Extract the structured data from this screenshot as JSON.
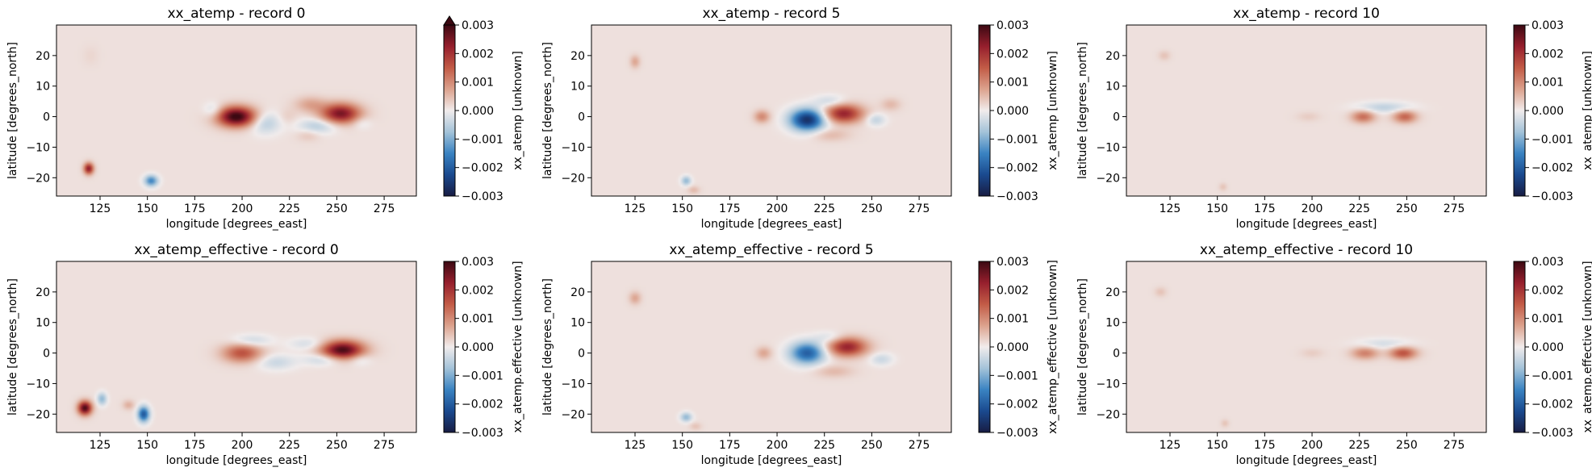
{
  "figure": {
    "panels": [
      {
        "id": "atemp-rec0",
        "title": "xx_atemp - record 0",
        "xlabel": "longitude [degrees_east]",
        "ylabel": "latitude [degrees_north]",
        "colorbar_label": "xx_atemp [unknown]",
        "colorbar_extend_max": true,
        "blobs": [
          {
            "lon": 197,
            "lat": 0,
            "w": 10,
            "h": 3.2,
            "v": 0.003
          },
          {
            "lon": 212,
            "lat": -2,
            "w": 8,
            "h": 3.5,
            "v": -0.0007
          },
          {
            "lon": 185,
            "lat": 2,
            "w": 5,
            "h": 2.5,
            "v": -0.0005
          },
          {
            "lon": 224,
            "lat": 0,
            "w": 5,
            "h": 2.5,
            "v": 0.0002
          },
          {
            "lon": 236,
            "lat": 4,
            "w": 8,
            "h": 2.5,
            "v": 0.0006
          },
          {
            "lon": 252,
            "lat": 1,
            "w": 10,
            "h": 3.2,
            "v": 0.0024
          },
          {
            "lon": 240,
            "lat": -3,
            "w": 10,
            "h": 2.5,
            "v": -0.0007
          },
          {
            "lon": 263,
            "lat": -2,
            "w": 5,
            "h": 2,
            "v": -0.0003
          },
          {
            "lon": 235,
            "lat": -6,
            "w": 6,
            "h": 2,
            "v": 0.0003
          },
          {
            "lon": 119,
            "lat": -17,
            "w": 2.5,
            "h": 1.8,
            "v": 0.0022
          },
          {
            "lon": 152,
            "lat": -21,
            "w": 3.5,
            "h": 1.8,
            "v": -0.0016
          },
          {
            "lon": 120,
            "lat": 20,
            "w": 4,
            "h": 3,
            "v": 0.0001
          }
        ]
      },
      {
        "id": "atemp-rec5",
        "title": "xx_atemp - record 5",
        "xlabel": "longitude [degrees_east]",
        "ylabel": "latitude [degrees_north]",
        "colorbar_label": "xx_atemp [unknown]",
        "colorbar_extend_max": false,
        "blobs": [
          {
            "lon": 216,
            "lat": -1,
            "w": 9,
            "h": 3.5,
            "v": -0.0028
          },
          {
            "lon": 235,
            "lat": 1,
            "w": 10,
            "h": 3,
            "v": 0.0021
          },
          {
            "lon": 192,
            "lat": 0,
            "w": 4,
            "h": 2,
            "v": 0.0009
          },
          {
            "lon": 228,
            "lat": 5,
            "w": 8,
            "h": 2,
            "v": -0.0005
          },
          {
            "lon": 252,
            "lat": -1,
            "w": 5,
            "h": 2,
            "v": -0.0006
          },
          {
            "lon": 260,
            "lat": 4,
            "w": 5,
            "h": 2,
            "v": 0.0004
          },
          {
            "lon": 228,
            "lat": -6,
            "w": 10,
            "h": 2,
            "v": 0.0004
          },
          {
            "lon": 125,
            "lat": 18,
            "w": 2.5,
            "h": 2,
            "v": 0.0006
          },
          {
            "lon": 152,
            "lat": -21,
            "w": 2.5,
            "h": 1.5,
            "v": -0.001
          },
          {
            "lon": 156,
            "lat": -24,
            "w": 3,
            "h": 1.2,
            "v": 0.0004
          }
        ]
      },
      {
        "id": "atemp-rec10",
        "title": "xx_atemp - record 10",
        "xlabel": "longitude [degrees_east]",
        "ylabel": "latitude [degrees_north]",
        "colorbar_label": "xx_atemp [unknown]",
        "colorbar_extend_max": false,
        "blobs": [
          {
            "lon": 227,
            "lat": 0,
            "w": 6,
            "h": 2,
            "v": 0.0012
          },
          {
            "lon": 249,
            "lat": 0,
            "w": 6,
            "h": 2,
            "v": 0.0013
          },
          {
            "lon": 238,
            "lat": 3,
            "w": 14,
            "h": 1.8,
            "v": -0.0006
          },
          {
            "lon": 198,
            "lat": 0,
            "w": 6,
            "h": 1.5,
            "v": 0.0002
          },
          {
            "lon": 122,
            "lat": 20,
            "w": 3,
            "h": 1.5,
            "v": 0.0003
          },
          {
            "lon": 153,
            "lat": -23,
            "w": 2,
            "h": 1.2,
            "v": 0.0003
          }
        ]
      },
      {
        "id": "effective-rec0",
        "title": "xx_atemp_effective - record 0",
        "xlabel": "longitude [degrees_east]",
        "ylabel": "latitude [degrees_north]",
        "colorbar_label": "xx_atemp.effective [unknown]",
        "colorbar_extend_max": false,
        "blobs": [
          {
            "lon": 200,
            "lat": 0,
            "w": 10,
            "h": 3,
            "v": 0.0015
          },
          {
            "lon": 205,
            "lat": 4,
            "w": 10,
            "h": 2,
            "v": -0.0005
          },
          {
            "lon": 218,
            "lat": -3,
            "w": 10,
            "h": 2.5,
            "v": -0.0005
          },
          {
            "lon": 235,
            "lat": 3,
            "w": 10,
            "h": 2,
            "v": -0.0004
          },
          {
            "lon": 253,
            "lat": 1,
            "w": 11,
            "h": 3,
            "v": 0.0028
          },
          {
            "lon": 243,
            "lat": -2,
            "w": 10,
            "h": 2,
            "v": -0.0006
          },
          {
            "lon": 262,
            "lat": -2,
            "w": 6,
            "h": 2,
            "v": -0.0004
          },
          {
            "lon": 117,
            "lat": -18,
            "w": 3.5,
            "h": 2.2,
            "v": 0.0028
          },
          {
            "lon": 126,
            "lat": -15,
            "w": 2.5,
            "h": 2,
            "v": -0.001
          },
          {
            "lon": 148,
            "lat": -20,
            "w": 3,
            "h": 2.5,
            "v": -0.0022
          },
          {
            "lon": 140,
            "lat": -17,
            "w": 3,
            "h": 1.5,
            "v": 0.0005
          }
        ]
      },
      {
        "id": "effective-rec5",
        "title": "xx_atemp_effective - record 5",
        "xlabel": "longitude [degrees_east]",
        "ylabel": "latitude [degrees_north]",
        "colorbar_label": "xx_atemp_effective [unknown]",
        "colorbar_extend_max": false,
        "blobs": [
          {
            "lon": 216,
            "lat": 0,
            "w": 9,
            "h": 3.5,
            "v": -0.0021
          },
          {
            "lon": 237,
            "lat": 2,
            "w": 10,
            "h": 3,
            "v": 0.0021
          },
          {
            "lon": 193,
            "lat": 0,
            "w": 4,
            "h": 2,
            "v": 0.0006
          },
          {
            "lon": 228,
            "lat": 5,
            "w": 8,
            "h": 2,
            "v": -0.0004
          },
          {
            "lon": 255,
            "lat": -2,
            "w": 6,
            "h": 2,
            "v": -0.0005
          },
          {
            "lon": 230,
            "lat": -6,
            "w": 10,
            "h": 2,
            "v": 0.0004
          },
          {
            "lon": 125,
            "lat": 18,
            "w": 3,
            "h": 2,
            "v": 0.0006
          },
          {
            "lon": 152,
            "lat": -21,
            "w": 3,
            "h": 1.5,
            "v": -0.001
          },
          {
            "lon": 157,
            "lat": -24,
            "w": 3,
            "h": 1.2,
            "v": 0.0003
          }
        ]
      },
      {
        "id": "effective-rec10",
        "title": "xx_atemp_effective - record 10",
        "xlabel": "longitude [degrees_east]",
        "ylabel": "latitude [degrees_north]",
        "colorbar_label": "xx_atemp.effective [unknown]",
        "colorbar_extend_max": false,
        "blobs": [
          {
            "lon": 228,
            "lat": 0,
            "w": 7,
            "h": 2,
            "v": 0.001
          },
          {
            "lon": 248,
            "lat": 0,
            "w": 7,
            "h": 2,
            "v": 0.0015
          },
          {
            "lon": 238,
            "lat": 3,
            "w": 14,
            "h": 1.8,
            "v": -0.0004
          },
          {
            "lon": 200,
            "lat": 0,
            "w": 6,
            "h": 1.5,
            "v": 0.0002
          },
          {
            "lon": 120,
            "lat": 20,
            "w": 3,
            "h": 1.5,
            "v": 0.0003
          },
          {
            "lon": 154,
            "lat": -23,
            "w": 2,
            "h": 1.2,
            "v": 0.0003
          }
        ]
      }
    ],
    "colormap": {
      "name": "balance",
      "stops": [
        "#181c43",
        "#1a4a8f",
        "#3a83c2",
        "#a4c3d9",
        "#f1ecec",
        "#dca28d",
        "#c25b46",
        "#961f2d",
        "#3c0912"
      ]
    }
  },
  "chart_data": [
    {
      "type": "heatmap",
      "title": "xx_atemp - record 0",
      "xlabel": "longitude [degrees_east]",
      "ylabel": "latitude [degrees_north]",
      "x_ticks": [
        125,
        150,
        175,
        200,
        225,
        250,
        275
      ],
      "y_ticks": [
        20,
        10,
        0,
        -10,
        -20
      ],
      "xlim": [
        102,
        292
      ],
      "ylim": [
        -26,
        30
      ],
      "colorbar": {
        "label": "xx_atemp [unknown]",
        "range": [
          -0.003,
          0.003
        ],
        "ticks": [
          "0.003",
          "0.002",
          "0.001",
          "0.000",
          "−0.001",
          "−0.002",
          "−0.003"
        ],
        "extend": "max"
      }
    },
    {
      "type": "heatmap",
      "title": "xx_atemp - record 5",
      "xlabel": "longitude [degrees_east]",
      "ylabel": "latitude [degrees_north]",
      "x_ticks": [
        125,
        150,
        175,
        200,
        225,
        250,
        275
      ],
      "y_ticks": [
        20,
        10,
        0,
        -10,
        -20
      ],
      "xlim": [
        102,
        292
      ],
      "ylim": [
        -26,
        30
      ],
      "colorbar": {
        "label": "xx_atemp [unknown]",
        "range": [
          -0.003,
          0.003
        ],
        "ticks": [
          "0.003",
          "0.002",
          "0.001",
          "0.000",
          "−0.001",
          "−0.002",
          "−0.003"
        ]
      }
    },
    {
      "type": "heatmap",
      "title": "xx_atemp - record 10",
      "xlabel": "longitude [degrees_east]",
      "ylabel": "latitude [degrees_north]",
      "x_ticks": [
        125,
        150,
        175,
        200,
        225,
        250,
        275
      ],
      "y_ticks": [
        20,
        10,
        0,
        -10,
        -20
      ],
      "xlim": [
        102,
        292
      ],
      "ylim": [
        -26,
        30
      ],
      "colorbar": {
        "label": "xx_atemp [unknown]",
        "range": [
          -0.003,
          0.003
        ],
        "ticks": [
          "0.003",
          "0.002",
          "0.001",
          "0.000",
          "−0.001",
          "−0.002",
          "−0.003"
        ]
      }
    },
    {
      "type": "heatmap",
      "title": "xx_atemp_effective - record 0",
      "xlabel": "longitude [degrees_east]",
      "ylabel": "latitude [degrees_north]",
      "x_ticks": [
        125,
        150,
        175,
        200,
        225,
        250,
        275
      ],
      "y_ticks": [
        20,
        10,
        0,
        -10,
        -20
      ],
      "xlim": [
        102,
        292
      ],
      "ylim": [
        -26,
        30
      ],
      "colorbar": {
        "label": "xx_atemp.effective [unknown]",
        "range": [
          -0.003,
          0.003
        ],
        "ticks": [
          "0.003",
          "0.002",
          "0.001",
          "0.000",
          "−0.001",
          "−0.002",
          "−0.003"
        ]
      }
    },
    {
      "type": "heatmap",
      "title": "xx_atemp_effective - record 5",
      "xlabel": "longitude [degrees_east]",
      "ylabel": "latitude [degrees_north]",
      "x_ticks": [
        125,
        150,
        175,
        200,
        225,
        250,
        275
      ],
      "y_ticks": [
        20,
        10,
        0,
        -10,
        -20
      ],
      "xlim": [
        102,
        292
      ],
      "ylim": [
        -26,
        30
      ],
      "colorbar": {
        "label": "xx_atemp_effective [unknown]",
        "range": [
          -0.003,
          0.003
        ],
        "ticks": [
          "0.003",
          "0.002",
          "0.001",
          "0.000",
          "−0.001",
          "−0.002",
          "−0.003"
        ]
      }
    },
    {
      "type": "heatmap",
      "title": "xx_atemp_effective - record 10",
      "xlabel": "longitude [degrees_east]",
      "ylabel": "latitude [degrees_north]",
      "x_ticks": [
        125,
        150,
        175,
        200,
        225,
        250,
        275
      ],
      "y_ticks": [
        20,
        10,
        0,
        -10,
        -20
      ],
      "xlim": [
        102,
        292
      ],
      "ylim": [
        -26,
        30
      ],
      "colorbar": {
        "label": "xx_atemp.effective [unknown]",
        "range": [
          -0.003,
          0.003
        ],
        "ticks": [
          "0.003",
          "0.002",
          "0.001",
          "0.000",
          "−0.001",
          "−0.002",
          "−0.003"
        ]
      }
    }
  ]
}
